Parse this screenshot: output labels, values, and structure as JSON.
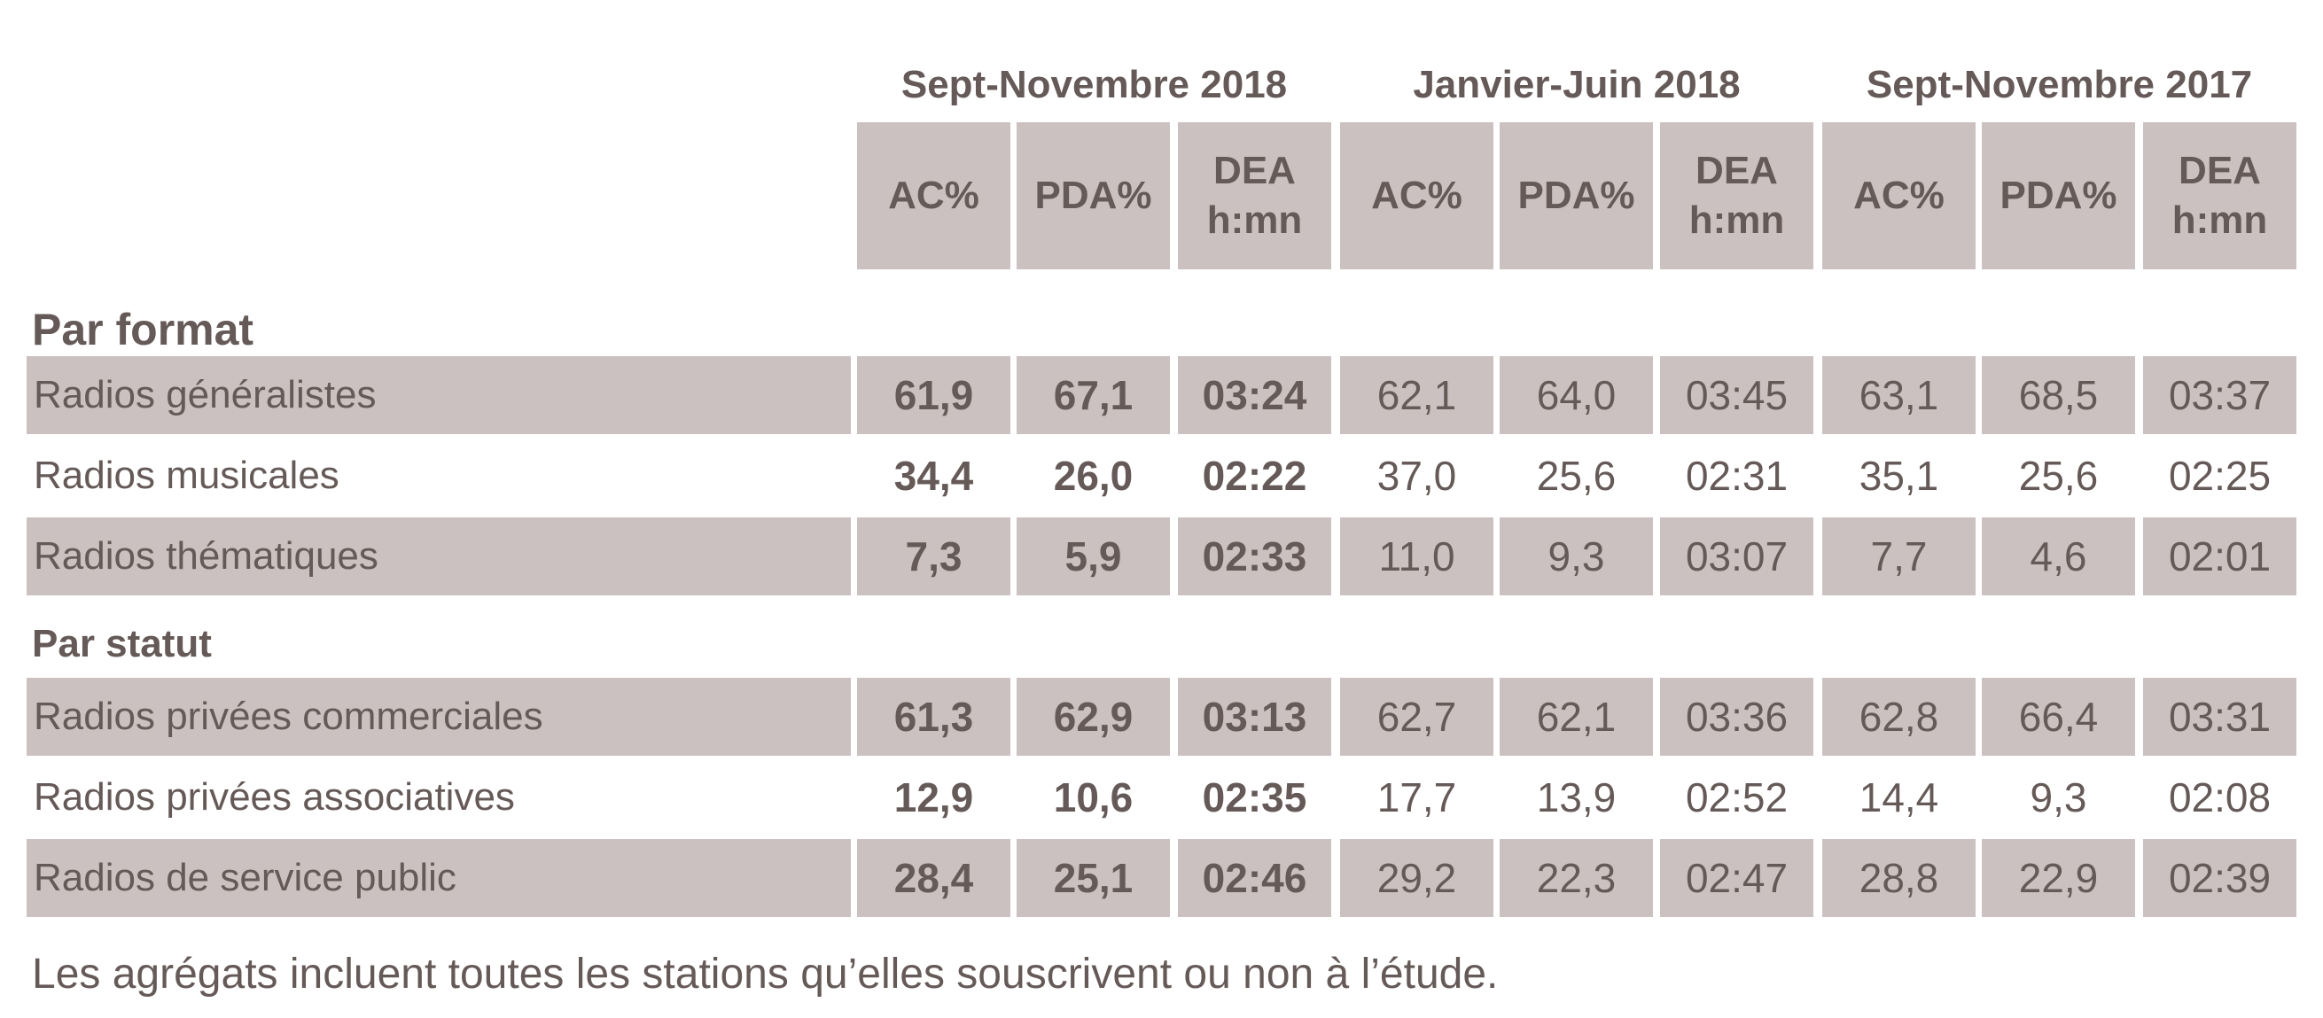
{
  "chart_data": {
    "type": "table",
    "title": "",
    "periods": [
      "Sept-Novembre 2018",
      "Janvier-Juin 2018",
      "Sept-Novembre 2017"
    ],
    "column_headers": [
      "AC%",
      "PDA%",
      "DEA\nh:mn"
    ],
    "sections": [
      {
        "title": "Par format",
        "rows": [
          {
            "label": "Radios généralistes",
            "values": [
              "61,9",
              "67,1",
              "03:24",
              "62,1",
              "64,0",
              "03:45",
              "63,1",
              "68,5",
              "03:37"
            ]
          },
          {
            "label": "Radios musicales",
            "values": [
              "34,4",
              "26,0",
              "02:22",
              "37,0",
              "25,6",
              "02:31",
              "35,1",
              "25,6",
              "02:25"
            ]
          },
          {
            "label": "Radios thématiques",
            "values": [
              "7,3",
              "5,9",
              "02:33",
              "11,0",
              "9,3",
              "03:07",
              "7,7",
              "4,6",
              "02:01"
            ]
          }
        ]
      },
      {
        "title": "Par statut",
        "rows": [
          {
            "label": "Radios privées commerciales",
            "values": [
              "61,3",
              "62,9",
              "03:13",
              "62,7",
              "62,1",
              "03:36",
              "62,8",
              "66,4",
              "03:31"
            ]
          },
          {
            "label": "Radios privées associatives",
            "values": [
              "12,9",
              "10,6",
              "02:35",
              "17,7",
              "13,9",
              "02:52",
              "14,4",
              "9,3",
              "02:08"
            ]
          },
          {
            "label": "Radios de service public",
            "values": [
              "28,4",
              "25,1",
              "02:46",
              "29,2",
              "22,3",
              "02:47",
              "28,8",
              "22,9",
              "02:39"
            ]
          }
        ]
      }
    ],
    "footnote": "Les agrégats incluent toutes les stations qu’elles souscrivent ou non à l’étude."
  },
  "colors": {
    "text": "#655a57",
    "shade": "#cbc1c0",
    "background": "#ffffff"
  }
}
